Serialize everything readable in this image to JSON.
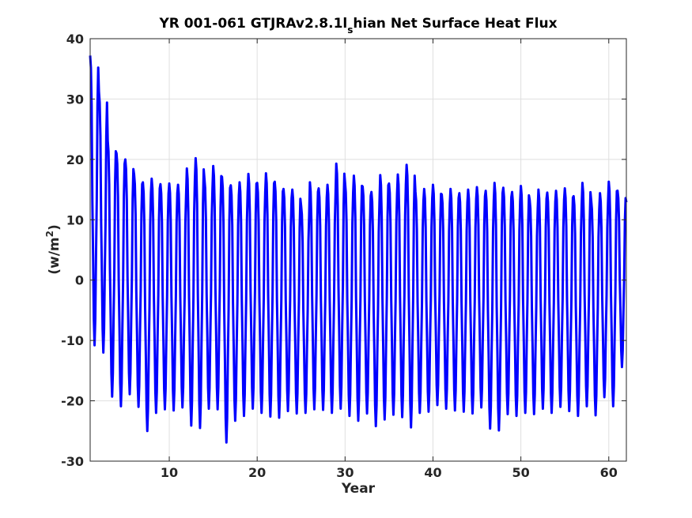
{
  "chart_data": {
    "type": "line",
    "title_main": "YR 001-061 GTJRAv2.8.1l",
    "title_sub": "s",
    "title_rest": "hian Net Surface Heat Flux",
    "xlabel": "Year",
    "ylabel_main": "(w/m",
    "ylabel_sup": "2",
    "ylabel_close": ")",
    "xlim": [
      1,
      62
    ],
    "ylim": [
      -30,
      40
    ],
    "xticks": [
      10,
      20,
      30,
      40,
      50,
      60
    ],
    "yticks": [
      -30,
      -20,
      -10,
      0,
      10,
      20,
      30,
      40
    ],
    "grid": true,
    "series": [
      {
        "color": "#0000ff",
        "samples_per_year": 12,
        "annual_max": [
          37.2,
          31.2,
          23.1,
          21.0,
          20.0,
          17.5,
          16.2,
          16.8,
          15.9,
          16.0,
          15.8,
          18.5,
          20.2,
          16.8,
          18.9,
          17.1,
          15.7,
          16.2,
          17.6,
          16.1,
          17.7,
          16.3,
          15.1,
          15.0,
          12.3,
          16.2,
          15.2,
          15.8,
          19.3,
          16.1,
          17.3,
          15.5,
          14.6,
          17.4,
          16.0,
          17.5,
          19.1,
          14.7,
          15.1,
          15.8,
          14.2,
          15.1,
          14.4,
          15.0,
          15.4,
          14.8,
          16.1,
          15.3,
          14.6,
          15.6,
          13.3,
          15.0,
          14.5,
          14.8,
          15.2,
          13.9,
          16.1,
          13.2,
          14.4,
          16.3,
          14.8
        ],
        "annual_min": [
          -10.8,
          -12.0,
          -19.3,
          -20.9,
          -18.9,
          -21.0,
          -25.0,
          -22.0,
          -21.4,
          -21.6,
          -21.1,
          -24.1,
          -24.5,
          -21.3,
          -21.4,
          -26.9,
          -23.3,
          -22.5,
          -21.3,
          -22.0,
          -22.6,
          -22.8,
          -21.7,
          -22.1,
          -22.0,
          -21.4,
          -21.5,
          -22.0,
          -21.3,
          -22.5,
          -23.3,
          -22.1,
          -24.2,
          -23.1,
          -22.3,
          -22.7,
          -24.4,
          -22.0,
          -21.8,
          -20.7,
          -21.3,
          -21.6,
          -21.8,
          -22.1,
          -21.1,
          -24.6,
          -24.9,
          -22.2,
          -22.5,
          -22.0,
          -22.2,
          -21.3,
          -22.0,
          -21.0,
          -21.7,
          -22.5,
          -20.9,
          -22.4,
          -19.4,
          -20.9,
          -14.4
        ],
        "final_value": 12.9
      }
    ]
  }
}
